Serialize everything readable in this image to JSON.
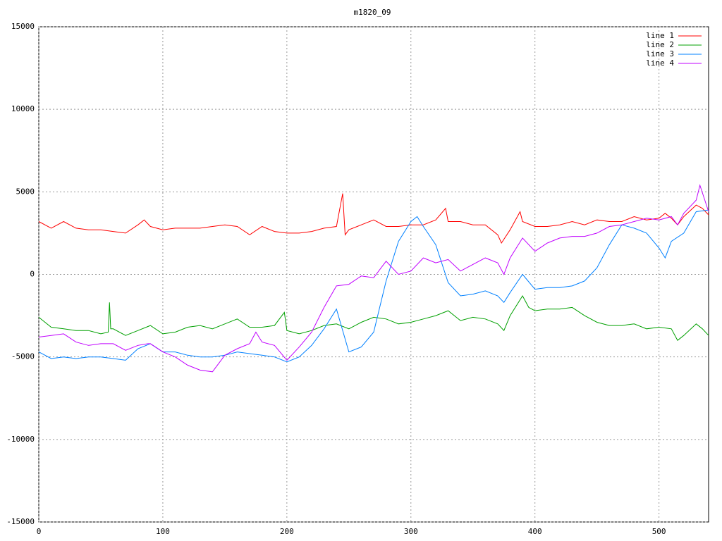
{
  "chart_data": {
    "type": "line",
    "title": "m1820_09",
    "xlim": [
      0,
      540
    ],
    "ylim": [
      -15000,
      15000
    ],
    "xticks": [
      0,
      100,
      200,
      300,
      400,
      500
    ],
    "yticks": [
      -15000,
      -10000,
      -5000,
      0,
      5000,
      10000,
      15000
    ],
    "grid": true,
    "legend": "top-right",
    "series": [
      {
        "name": "line 1",
        "color": "#ff0000",
        "x": [
          0,
          10,
          20,
          30,
          40,
          50,
          60,
          70,
          80,
          85,
          90,
          100,
          110,
          120,
          130,
          140,
          150,
          160,
          170,
          180,
          190,
          200,
          210,
          220,
          230,
          240,
          245,
          247,
          250,
          260,
          270,
          280,
          290,
          300,
          310,
          320,
          328,
          330,
          340,
          350,
          360,
          370,
          373,
          380,
          388,
          390,
          400,
          410,
          420,
          430,
          440,
          450,
          460,
          470,
          480,
          490,
          500,
          505,
          510,
          515,
          520,
          530,
          535,
          540
        ],
        "values": [
          3200,
          2800,
          3200,
          2800,
          2700,
          2700,
          2600,
          2500,
          3000,
          3300,
          2900,
          2700,
          2800,
          2800,
          2800,
          2900,
          3000,
          2900,
          2400,
          2900,
          2600,
          2500,
          2500,
          2600,
          2800,
          2900,
          4900,
          2400,
          2700,
          3000,
          3300,
          2900,
          2900,
          3000,
          3000,
          3300,
          4000,
          3200,
          3200,
          3000,
          3000,
          2400,
          1900,
          2700,
          3800,
          3200,
          2900,
          2900,
          3000,
          3200,
          3000,
          3300,
          3200,
          3200,
          3500,
          3300,
          3400,
          3700,
          3400,
          3000,
          3500,
          4200,
          4000,
          3600
        ]
      },
      {
        "name": "line 2",
        "color": "#00a000",
        "x": [
          0,
          10,
          20,
          30,
          40,
          50,
          56,
          57,
          58,
          60,
          70,
          80,
          90,
          100,
          110,
          120,
          130,
          140,
          150,
          160,
          170,
          180,
          190,
          198,
          200,
          210,
          220,
          230,
          240,
          250,
          260,
          270,
          280,
          290,
          300,
          310,
          320,
          330,
          340,
          350,
          360,
          370,
          375,
          380,
          390,
          395,
          400,
          410,
          420,
          430,
          440,
          450,
          460,
          470,
          480,
          490,
          500,
          510,
          515,
          520,
          530,
          535,
          540
        ],
        "values": [
          -2600,
          -3200,
          -3300,
          -3400,
          -3400,
          -3600,
          -3500,
          -1700,
          -3300,
          -3300,
          -3700,
          -3400,
          -3100,
          -3600,
          -3500,
          -3200,
          -3100,
          -3300,
          -3000,
          -2700,
          -3200,
          -3200,
          -3100,
          -2300,
          -3400,
          -3600,
          -3400,
          -3100,
          -3000,
          -3300,
          -2900,
          -2600,
          -2700,
          -3000,
          -2900,
          -2700,
          -2500,
          -2200,
          -2800,
          -2600,
          -2700,
          -3000,
          -3400,
          -2500,
          -1300,
          -2000,
          -2200,
          -2100,
          -2100,
          -2000,
          -2500,
          -2900,
          -3100,
          -3100,
          -3000,
          -3300,
          -3200,
          -3300,
          -4000,
          -3700,
          -3000,
          -3300,
          -3700
        ]
      },
      {
        "name": "line 3",
        "color": "#0080ff",
        "x": [
          0,
          10,
          20,
          30,
          40,
          50,
          60,
          70,
          80,
          90,
          100,
          110,
          120,
          130,
          140,
          150,
          160,
          170,
          180,
          190,
          200,
          210,
          220,
          230,
          240,
          250,
          260,
          270,
          280,
          290,
          300,
          305,
          310,
          320,
          330,
          340,
          350,
          360,
          370,
          375,
          380,
          390,
          400,
          410,
          420,
          430,
          440,
          450,
          460,
          470,
          480,
          490,
          500,
          505,
          510,
          520,
          530,
          540
        ],
        "values": [
          -4700,
          -5100,
          -5000,
          -5100,
          -5000,
          -5000,
          -5100,
          -5200,
          -4500,
          -4200,
          -4700,
          -4700,
          -4900,
          -5000,
          -5000,
          -4900,
          -4700,
          -4800,
          -4900,
          -5000,
          -5300,
          -5000,
          -4300,
          -3300,
          -2100,
          -4700,
          -4400,
          -3500,
          -400,
          2000,
          3200,
          3500,
          2900,
          1800,
          -500,
          -1300,
          -1200,
          -1000,
          -1300,
          -1700,
          -1100,
          0,
          -900,
          -800,
          -800,
          -700,
          -400,
          400,
          1800,
          3000,
          2800,
          2500,
          1600,
          1000,
          2000,
          2500,
          3800,
          3900
        ]
      },
      {
        "name": "line 4",
        "color": "#c000ff",
        "x": [
          0,
          10,
          20,
          30,
          40,
          50,
          60,
          70,
          80,
          88,
          90,
          100,
          110,
          120,
          130,
          140,
          150,
          160,
          170,
          175,
          180,
          190,
          200,
          210,
          220,
          230,
          240,
          250,
          260,
          270,
          280,
          290,
          300,
          310,
          320,
          330,
          340,
          350,
          360,
          370,
          375,
          380,
          390,
          400,
          410,
          420,
          430,
          440,
          450,
          460,
          470,
          480,
          490,
          500,
          510,
          515,
          520,
          530,
          533,
          540
        ],
        "values": [
          -3800,
          -3700,
          -3600,
          -4100,
          -4300,
          -4200,
          -4200,
          -4600,
          -4300,
          -4200,
          -4200,
          -4700,
          -5000,
          -5500,
          -5800,
          -5900,
          -4900,
          -4500,
          -4200,
          -3500,
          -4100,
          -4300,
          -5200,
          -4400,
          -3500,
          -2000,
          -700,
          -600,
          -100,
          -200,
          800,
          0,
          200,
          1000,
          700,
          900,
          200,
          600,
          1000,
          700,
          0,
          1000,
          2200,
          1400,
          1900,
          2200,
          2300,
          2300,
          2500,
          2900,
          3000,
          3200,
          3400,
          3300,
          3500,
          3000,
          3700,
          4500,
          5400,
          3800
        ]
      }
    ]
  }
}
